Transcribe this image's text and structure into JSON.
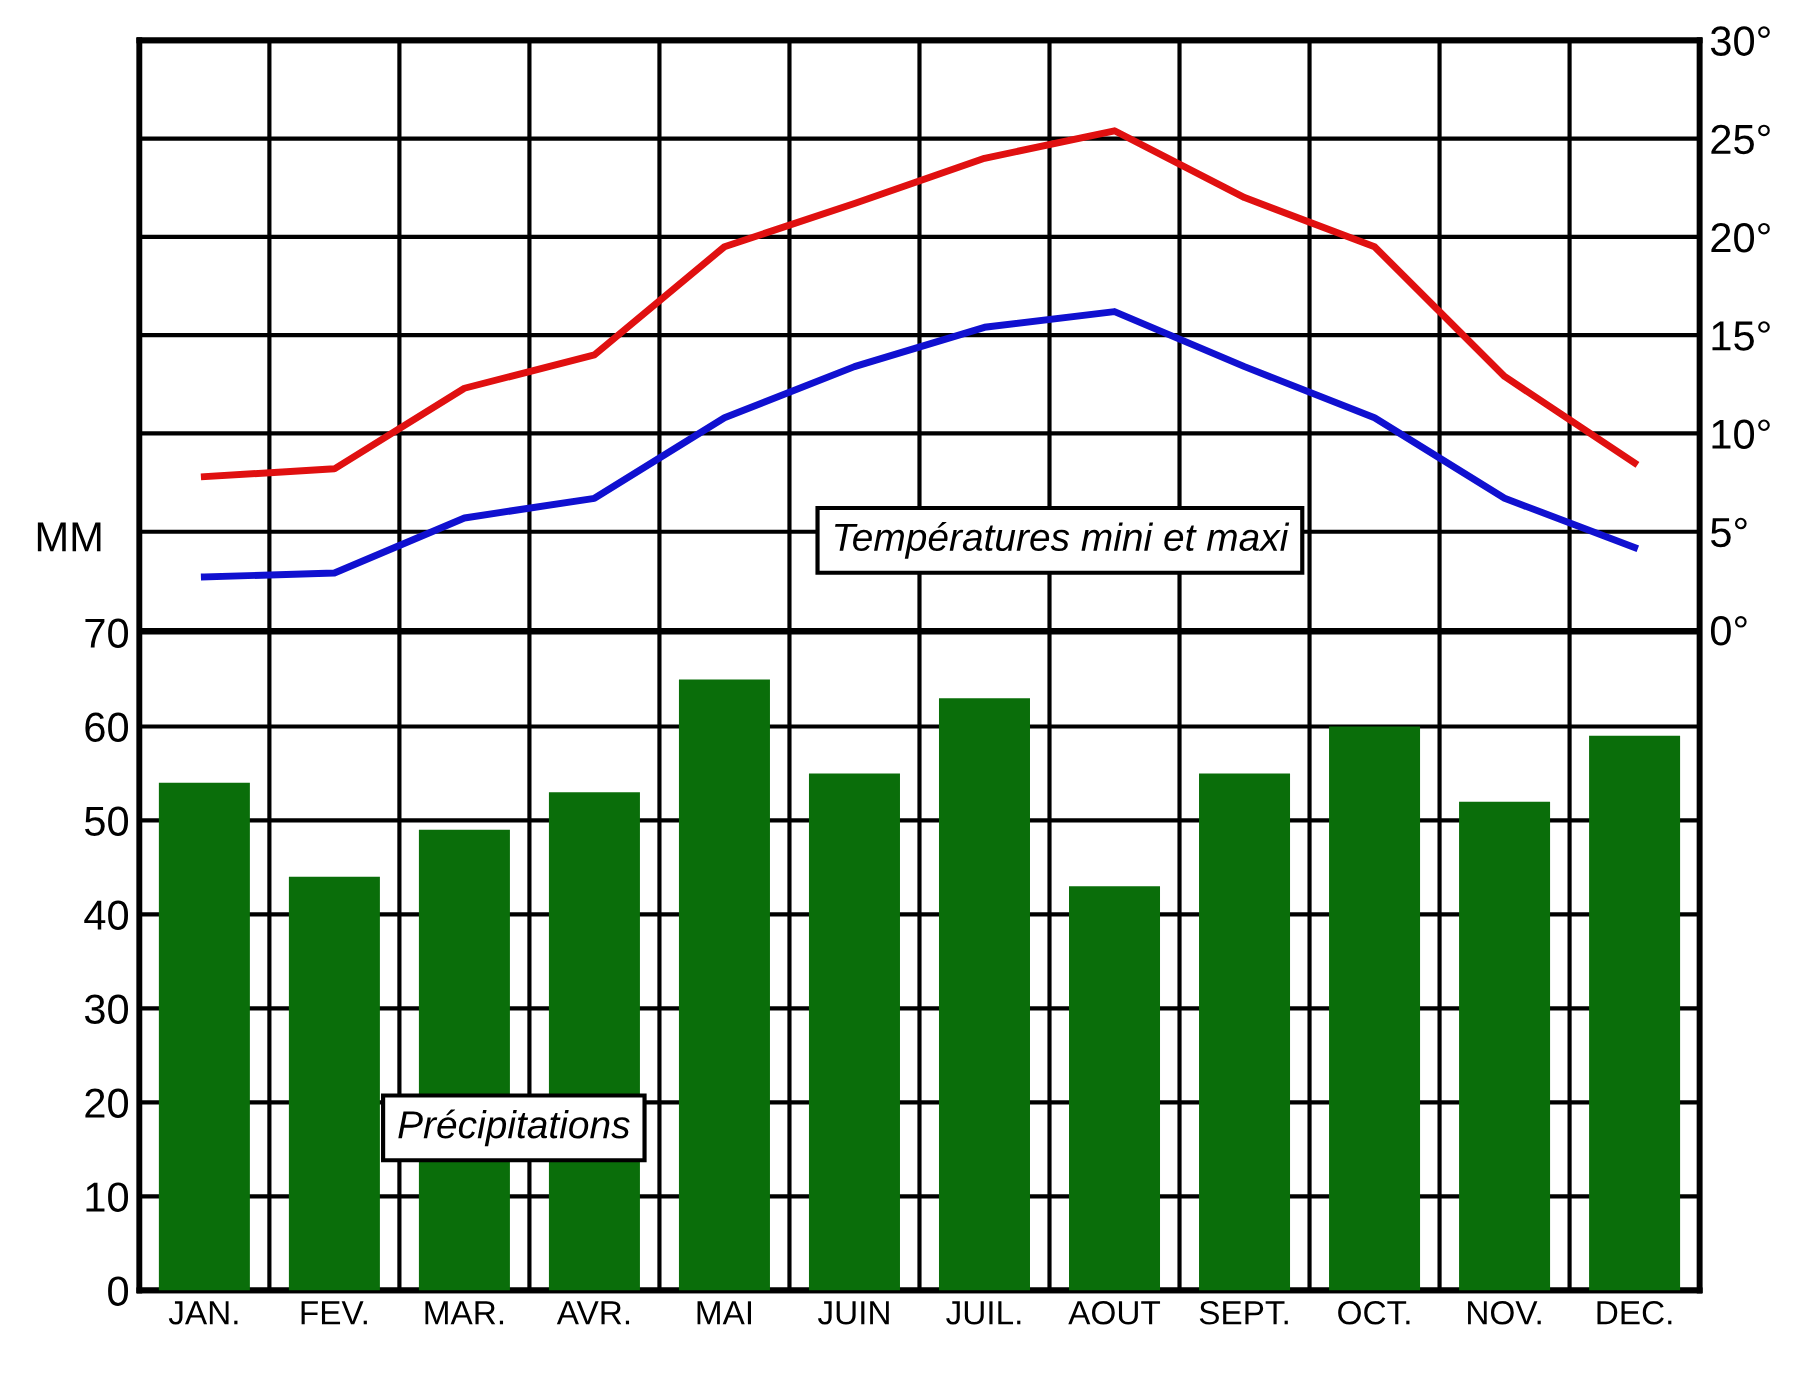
{
  "chart_data": {
    "type": "bar",
    "categories": [
      "JAN.",
      "FEV.",
      "MAR.",
      "AVR.",
      "MAI",
      "JUIN",
      "JUIL.",
      "AOUT",
      "SEPT.",
      "OCT.",
      "NOV.",
      "DEC."
    ],
    "ylabel": "MM",
    "ylim": [
      0,
      133
    ],
    "yticks": [
      0,
      10,
      20,
      30,
      40,
      50,
      60,
      70
    ],
    "y2lim": [
      -33.6,
      30
    ],
    "y2ticks": [
      {
        "value": 0,
        "label": "0°"
      },
      {
        "value": 5,
        "label": "5°"
      },
      {
        "value": 10,
        "label": "10°"
      },
      {
        "value": 15,
        "label": "15°"
      },
      {
        "value": 20,
        "label": "20°"
      },
      {
        "value": 25,
        "label": "25°"
      },
      {
        "value": 30,
        "label": "30°"
      }
    ],
    "series": [
      {
        "color": "#0a6e0a",
        "values": [
          54,
          44,
          49,
          53,
          65,
          55,
          63,
          43,
          55,
          60,
          52,
          59
        ]
      },
      {
        "type": "line",
        "axis": "y2",
        "color": "#e01010",
        "values": [
          7.8,
          8.2,
          12.3,
          14,
          19.5,
          21.7,
          24,
          25.4,
          22,
          19.5,
          12.9,
          8.5
        ]
      },
      {
        "type": "line",
        "axis": "y2",
        "color": "#1010d0",
        "values": [
          2.7,
          2.9,
          5.7,
          6.7,
          10.8,
          13.4,
          15.4,
          16.2,
          13.4,
          10.8,
          6.7,
          4.2
        ]
      }
    ],
    "annotations": [
      "Températures mini et maxi",
      "Précipitations"
    ],
    "grid": true,
    "legend": false,
    "marker": "none",
    "line_style": "solid"
  }
}
